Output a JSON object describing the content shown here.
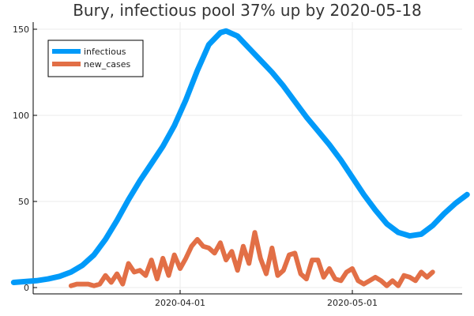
{
  "chart_data": {
    "type": "line",
    "title": "Bury, infectious pool 37% up by 2020-05-18",
    "xlabel": "",
    "ylabel": "",
    "x_range": [
      "2020-03-03",
      "2020-05-18"
    ],
    "ylim": [
      -2,
      155
    ],
    "x_ticks": [
      {
        "date": "2020-04-01",
        "label": "2020-04-01"
      },
      {
        "date": "2020-05-01",
        "label": "2020-05-01"
      }
    ],
    "y_ticks": [
      {
        "value": 0,
        "label": "0"
      },
      {
        "value": 50,
        "label": "50"
      },
      {
        "value": 100,
        "label": "100"
      },
      {
        "value": 150,
        "label": "150"
      }
    ],
    "grid": true,
    "legend_position": "top-left",
    "series": [
      {
        "name": "infectious",
        "color": "#009af9",
        "points": [
          [
            "2020-03-03",
            3
          ],
          [
            "2020-03-05",
            3.5
          ],
          [
            "2020-03-07",
            4
          ],
          [
            "2020-03-09",
            5
          ],
          [
            "2020-03-11",
            6.5
          ],
          [
            "2020-03-13",
            9
          ],
          [
            "2020-03-15",
            13
          ],
          [
            "2020-03-17",
            19
          ],
          [
            "2020-03-19",
            28
          ],
          [
            "2020-03-21",
            39
          ],
          [
            "2020-03-23",
            51
          ],
          [
            "2020-03-25",
            62
          ],
          [
            "2020-03-27",
            72
          ],
          [
            "2020-03-29",
            82
          ],
          [
            "2020-03-31",
            94
          ],
          [
            "2020-04-02",
            109
          ],
          [
            "2020-04-04",
            126
          ],
          [
            "2020-04-06",
            141
          ],
          [
            "2020-04-08",
            148
          ],
          [
            "2020-04-09",
            149
          ],
          [
            "2020-04-11",
            146
          ],
          [
            "2020-04-13",
            139
          ],
          [
            "2020-04-15",
            132
          ],
          [
            "2020-04-17",
            125
          ],
          [
            "2020-04-19",
            117
          ],
          [
            "2020-04-21",
            108
          ],
          [
            "2020-04-23",
            99
          ],
          [
            "2020-04-25",
            91
          ],
          [
            "2020-04-27",
            83
          ],
          [
            "2020-04-29",
            74
          ],
          [
            "2020-05-01",
            64
          ],
          [
            "2020-05-03",
            54
          ],
          [
            "2020-05-05",
            45
          ],
          [
            "2020-05-07",
            37
          ],
          [
            "2020-05-09",
            32
          ],
          [
            "2020-05-11",
            30
          ],
          [
            "2020-05-13",
            31
          ],
          [
            "2020-05-15",
            36
          ],
          [
            "2020-05-17",
            43
          ],
          [
            "2020-05-19",
            49
          ],
          [
            "2020-05-21",
            54
          ]
        ]
      },
      {
        "name": "new_cases",
        "color": "#e26f46",
        "points": [
          [
            "2020-03-13",
            1
          ],
          [
            "2020-03-14",
            2
          ],
          [
            "2020-03-15",
            2
          ],
          [
            "2020-03-16",
            2
          ],
          [
            "2020-03-17",
            1
          ],
          [
            "2020-03-18",
            2
          ],
          [
            "2020-03-19",
            7
          ],
          [
            "2020-03-20",
            3
          ],
          [
            "2020-03-21",
            8
          ],
          [
            "2020-03-22",
            2
          ],
          [
            "2020-03-23",
            14
          ],
          [
            "2020-03-24",
            9
          ],
          [
            "2020-03-25",
            10
          ],
          [
            "2020-03-26",
            7
          ],
          [
            "2020-03-27",
            16
          ],
          [
            "2020-03-28",
            5
          ],
          [
            "2020-03-29",
            17
          ],
          [
            "2020-03-30",
            7
          ],
          [
            "2020-03-31",
            19
          ],
          [
            "2020-04-01",
            11
          ],
          [
            "2020-04-02",
            17
          ],
          [
            "2020-04-03",
            24
          ],
          [
            "2020-04-04",
            28
          ],
          [
            "2020-04-05",
            24
          ],
          [
            "2020-04-06",
            23
          ],
          [
            "2020-04-07",
            20
          ],
          [
            "2020-04-08",
            26
          ],
          [
            "2020-04-09",
            16
          ],
          [
            "2020-04-10",
            21
          ],
          [
            "2020-04-11",
            10
          ],
          [
            "2020-04-12",
            24
          ],
          [
            "2020-04-13",
            14
          ],
          [
            "2020-04-14",
            32
          ],
          [
            "2020-04-15",
            17
          ],
          [
            "2020-04-16",
            8
          ],
          [
            "2020-04-17",
            23
          ],
          [
            "2020-04-18",
            7
          ],
          [
            "2020-04-19",
            10
          ],
          [
            "2020-04-20",
            19
          ],
          [
            "2020-04-21",
            20
          ],
          [
            "2020-04-22",
            8
          ],
          [
            "2020-04-23",
            5
          ],
          [
            "2020-04-24",
            16
          ],
          [
            "2020-04-25",
            16
          ],
          [
            "2020-04-26",
            6
          ],
          [
            "2020-04-27",
            11
          ],
          [
            "2020-04-28",
            5
          ],
          [
            "2020-04-29",
            4
          ],
          [
            "2020-04-30",
            9
          ],
          [
            "2020-05-01",
            11
          ],
          [
            "2020-05-02",
            4
          ],
          [
            "2020-05-03",
            2
          ],
          [
            "2020-05-04",
            4
          ],
          [
            "2020-05-05",
            6
          ],
          [
            "2020-05-06",
            4
          ],
          [
            "2020-05-07",
            1
          ],
          [
            "2020-05-08",
            4
          ],
          [
            "2020-05-09",
            1
          ],
          [
            "2020-05-10",
            7
          ],
          [
            "2020-05-11",
            6
          ],
          [
            "2020-05-12",
            4
          ],
          [
            "2020-05-13",
            9
          ],
          [
            "2020-05-14",
            6
          ],
          [
            "2020-05-15",
            9
          ]
        ]
      }
    ]
  }
}
